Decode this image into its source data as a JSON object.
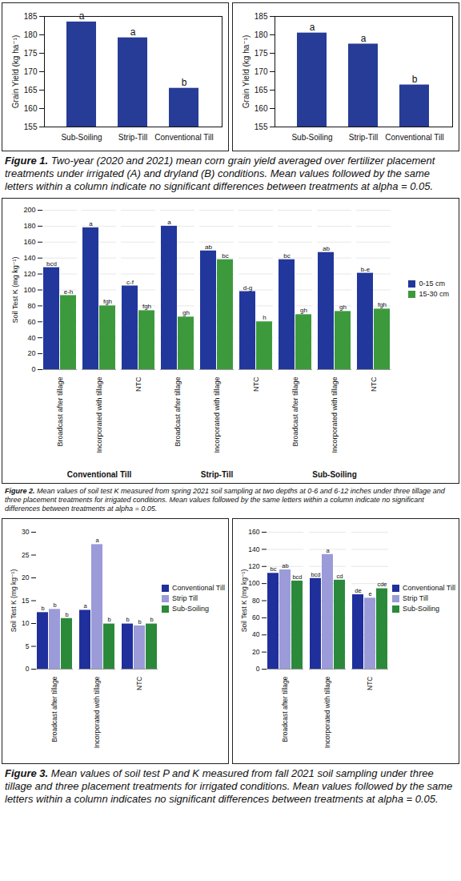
{
  "captions": [
    {
      "label": "Figure 1.",
      "text": "Two-year (2020 and 2021) mean corn grain yield averaged over fertilizer placement treatments under irrigated (A) and dryland (B) conditions. Mean values followed by the same letters within a column indicate no significant differences between treatments at alpha = 0.05."
    },
    {
      "label": "Figure 2.",
      "text": "Mean values of soil test K measured from spring 2021 soil sampling at two depths at 0-6 and 6-12 inches under three tillage and three placement treatments for irrigated conditions. Mean values followed by the same letters within a column indicate no significant differences between treatments at alpha = 0.05."
    },
    {
      "label": "Figure 3.",
      "text": "Mean values of soil test P and K measured from fall 2021 soil sampling under three tillage and three placement treatments for irrigated conditions. Mean values followed by the same letters within a column indicates no significant differences between treatments at alpha = 0.05."
    }
  ],
  "chart_data": [
    {
      "type": "bar",
      "y_label": "Grain Yield (kg ha⁻¹)",
      "categories": [
        "Sub-Soiling",
        "Strip-Till",
        "Conventional Till"
      ],
      "values": [
        183.5,
        179.2,
        165.5
      ],
      "annotations": [
        "a",
        "a",
        "b"
      ],
      "color": "#263c96",
      "ylim": [
        155,
        185
      ],
      "yticks": [
        155,
        160,
        165,
        170,
        175,
        180,
        185
      ],
      "grid": false
    },
    {
      "type": "bar",
      "y_label": "Grain Yield (kg ha⁻¹)",
      "categories": [
        "Sub-Soiling",
        "Strip-Till",
        "Conventional Till"
      ],
      "values": [
        180.5,
        177.5,
        166.4
      ],
      "annotations": [
        "a",
        "a",
        "b"
      ],
      "color": "#263c96",
      "ylim": [
        155,
        185
      ],
      "yticks": [
        155,
        160,
        165,
        170,
        175,
        180,
        185
      ],
      "grid": false
    },
    {
      "type": "bar",
      "y_label": "Soil Test K (mg kg⁻¹)",
      "categories": [
        "Broadcast after tillage",
        "Incorporated with tillage",
        "NTC",
        "Broadcast after tillage",
        "Incorporated with tillage",
        "NTC",
        "Broadcast after tillage",
        "Incorporated with tillage",
        "NTC"
      ],
      "groups": [
        "Conventional Till",
        "Strip-Till",
        "Sub-Soiling"
      ],
      "series": [
        {
          "name": "0-15 cm",
          "color": "#22379c",
          "values": [
            128,
            178,
            105,
            180,
            149,
            98,
            138,
            147,
            121
          ],
          "annotations": [
            "bcd",
            "a",
            "c-f",
            "a",
            "ab",
            "d-g",
            "bc",
            "ab",
            "b-e"
          ]
        },
        {
          "name": "15-30 cm",
          "color": "#3c9a3c",
          "values": [
            93,
            80,
            74,
            66,
            138,
            60,
            69,
            73,
            76
          ],
          "annotations": [
            "e-h",
            "fgh",
            "fgh",
            "gh",
            "bc",
            "h",
            "gh",
            "gh",
            "fgh"
          ]
        }
      ],
      "ylim": [
        0,
        200
      ],
      "yticks": [
        0,
        20,
        40,
        60,
        80,
        100,
        120,
        140,
        160,
        180,
        200
      ],
      "grid": true,
      "legend": "right"
    },
    {
      "type": "bar",
      "y_label": "Soil Test K (mg kg⁻¹)",
      "categories": [
        "Broadcast after tillage",
        "Incorporated with tillage",
        "NTC"
      ],
      "series": [
        {
          "name": "Conventional Till",
          "color": "#1f2f9b",
          "values": [
            12.4,
            12.9,
            9.9
          ],
          "annotations": [
            "b",
            "a",
            "b"
          ]
        },
        {
          "name": "Strip Till",
          "color": "#9b9bd9",
          "values": [
            13.1,
            27.3,
            9.5
          ],
          "annotations": [
            "b",
            "a",
            "b"
          ]
        },
        {
          "name": "Sub-Soiling",
          "color": "#2a8a3a",
          "values": [
            11.1,
            9.9,
            9.9
          ],
          "annotations": [
            "b",
            "b",
            "b"
          ]
        }
      ],
      "ylim": [
        0,
        30
      ],
      "yticks": [
        0,
        5,
        10,
        15,
        20,
        25,
        30
      ],
      "grid": false,
      "legend": "right"
    },
    {
      "type": "bar",
      "y_label": "Soil Test K (mg kg⁻¹)",
      "categories": [
        "Broadcast after tillage",
        "Incorporated with tillage",
        "NTC"
      ],
      "series": [
        {
          "name": "Conventional Till",
          "color": "#1f2f9b",
          "values": [
            112,
            106,
            87
          ],
          "annotations": [
            "bc",
            "bcd",
            "de"
          ]
        },
        {
          "name": "Strip Till",
          "color": "#9b9bd9",
          "values": [
            116,
            134,
            83
          ],
          "annotations": [
            "ab",
            "a",
            "e"
          ]
        },
        {
          "name": "Sub-Soiling",
          "color": "#2a8a3a",
          "values": [
            103,
            104,
            94
          ],
          "annotations": [
            "bcd",
            "cd",
            "cde"
          ]
        }
      ],
      "ylim": [
        0,
        160
      ],
      "yticks": [
        0,
        20,
        40,
        60,
        80,
        100,
        120,
        140,
        160
      ],
      "grid": true,
      "legend": "right"
    }
  ]
}
